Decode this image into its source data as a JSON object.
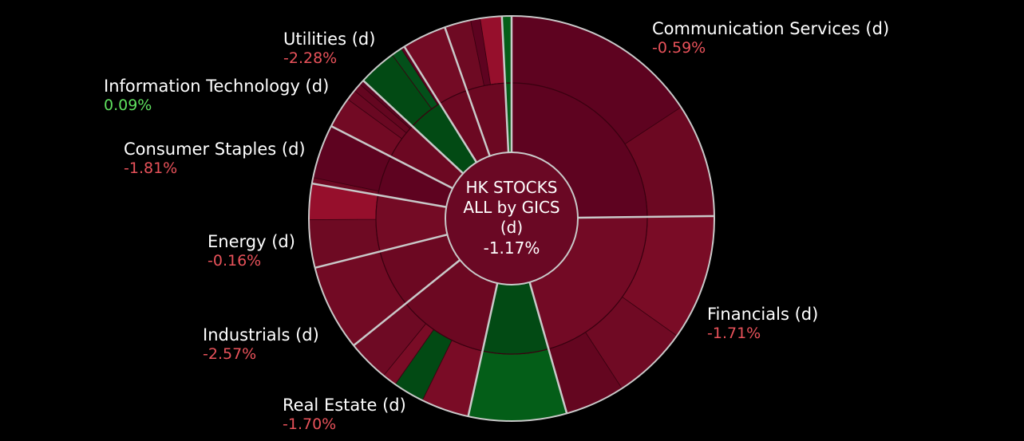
{
  "chart_data": {
    "type": "sunburst",
    "center": {
      "lines": [
        "HK STOCKS",
        "ALL by GICS",
        "(d)"
      ],
      "value": "-1.17%"
    },
    "colors": {
      "background": "#000000",
      "negative_text": "#e8525a",
      "positive_text": "#5ee05e",
      "border": "#c9c9c9"
    },
    "sectors": [
      {
        "key": "communication",
        "name": "Communication Services (d)",
        "change": "-0.59%",
        "change_value": -0.59,
        "weight": 26,
        "mid_color": "#5e0320",
        "children": [
          {
            "weight": 16.5,
            "color": "#5e0320"
          },
          {
            "weight": 9.5,
            "color": "#6c0822"
          }
        ]
      },
      {
        "key": "financials",
        "name": "Financials (d)",
        "change": "-1.71%",
        "change_value": -1.71,
        "weight": 21.8,
        "mid_color": "#730a25",
        "children": [
          {
            "weight": 10.5,
            "color": "#7a0c26"
          },
          {
            "weight": 6.3,
            "color": "#700a24"
          },
          {
            "weight": 5,
            "color": "#640620"
          }
        ]
      },
      {
        "key": "unlabeled-a",
        "name": "",
        "change": "",
        "weight": 8.2,
        "mid_color": "#024a14",
        "children": [
          {
            "weight": 8.2,
            "color": "#045e18"
          }
        ]
      },
      {
        "key": "unlabeled-b",
        "name": "",
        "change": "",
        "weight": 11.3,
        "mid_color": "#6c0822",
        "children": [
          {
            "weight": 4,
            "color": "#7a0c26"
          },
          {
            "weight": 2.6,
            "color": "#024a14"
          },
          {
            "weight": 1.2,
            "color": "#7a0c26"
          },
          {
            "weight": 3.5,
            "color": "#6e0a24"
          }
        ]
      },
      {
        "key": "real-estate",
        "name": "Real Estate (d)",
        "change": "-1.70%",
        "change_value": -1.7,
        "weight": 7.2,
        "mid_color": "#6c0822",
        "children": [
          {
            "weight": 7.2,
            "color": "#720a24"
          }
        ]
      },
      {
        "key": "industrials",
        "name": "Industrials (d)",
        "change": "-2.57%",
        "change_value": -2.57,
        "weight": 7,
        "mid_color": "#740b25",
        "children": [
          {
            "weight": 4,
            "color": "#6e0a23"
          },
          {
            "weight": 3,
            "color": "#960f2c"
          }
        ]
      },
      {
        "key": "energy",
        "name": "Energy (d)",
        "change": "-0.16%",
        "change_value": -0.16,
        "weight": 5,
        "mid_color": "#5e0320",
        "children": [
          {
            "weight": 0.5,
            "color": "#6c0822"
          },
          {
            "weight": 4.5,
            "color": "#5e0320"
          }
        ]
      },
      {
        "key": "consumer-staples",
        "name": "Consumer Staples (d)",
        "change": "-1.81%",
        "change_value": -1.81,
        "weight": 4.6,
        "mid_color": "#6c0822",
        "children": [
          {
            "weight": 2.6,
            "color": "#720a24"
          },
          {
            "weight": 0.9,
            "color": "#6a0822"
          },
          {
            "weight": 0.7,
            "color": "#640620"
          },
          {
            "weight": 0.4,
            "color": "#5a0420"
          }
        ]
      },
      {
        "key": "information-technology",
        "name": "Information Technology (d)",
        "change": "0.09%",
        "change_value": 0.09,
        "weight": 4.4,
        "mid_color": "#024a14",
        "children": [
          {
            "weight": 3.2,
            "color": "#024a14"
          },
          {
            "weight": 0.9,
            "color": "#03501a"
          },
          {
            "weight": 0.3,
            "color": "#5e0320"
          }
        ]
      },
      {
        "key": "utilities",
        "name": "Utilities (d)",
        "change": "-2.28%",
        "change_value": -2.28,
        "weight": 3.7,
        "mid_color": "#6c0822",
        "children": [
          {
            "weight": 3.7,
            "color": "#740b25"
          }
        ]
      },
      {
        "key": "unlabeled-c",
        "name": "",
        "change": "",
        "weight": 4.8,
        "mid_color": "#6c0822",
        "children": [
          {
            "weight": 2.2,
            "color": "#6e0a23"
          },
          {
            "weight": 0.8,
            "color": "#5e0320"
          },
          {
            "weight": 1.8,
            "color": "#960f2c"
          }
        ]
      },
      {
        "key": "unlabeled-d",
        "name": "",
        "change": "",
        "weight": 0.8,
        "mid_color": "#045e18",
        "children": [
          {
            "weight": 0.8,
            "color": "#045e18"
          }
        ]
      }
    ]
  }
}
